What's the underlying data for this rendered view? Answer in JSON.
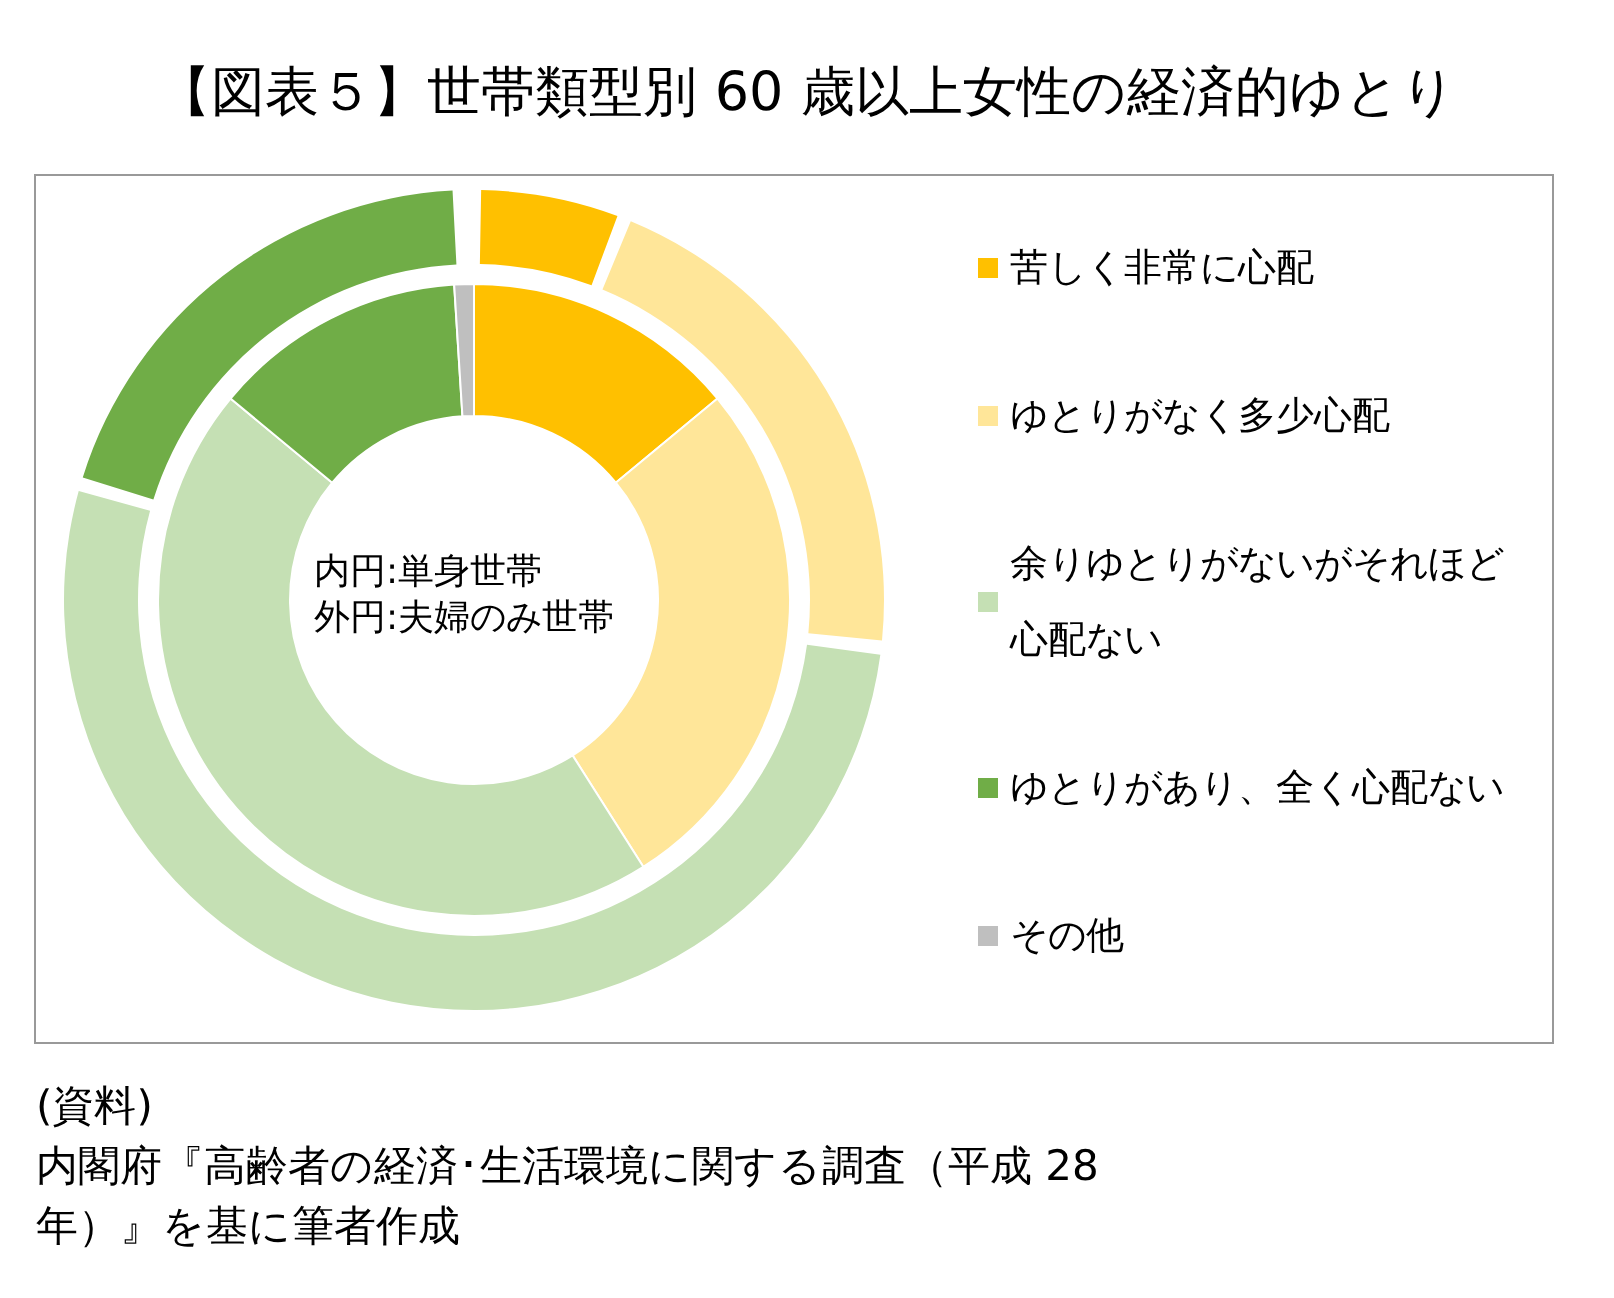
{
  "chart_data": {
    "type": "donut",
    "title": "【図表５】世帯類型別 60 歳以上女性の経済的ゆとり",
    "categories": [
      "苦しく非常に心配",
      "ゆとりがなく多少心配",
      "余りゆとりがないがそれほど心配ない",
      "ゆとりがあり、全く心配ない",
      "その他"
    ],
    "colors": [
      "#ffc000",
      "#ffe699",
      "#c5e0b4",
      "#70ad47",
      "#bfbfbf"
    ],
    "series": [
      {
        "values": [
          14,
          27,
          45,
          13,
          1
        ]
      },
      {
        "values": [
          6,
          21,
          53,
          20,
          0
        ]
      }
    ],
    "legend": "right",
    "annotations": [
      "内円:単身世帯",
      "外円:夫婦のみ世帯",
      "(資料)",
      "内閣府『高齢者の経済･生活環境に関する調査（平成 28 年）』を基に筆者作成"
    ]
  }
}
